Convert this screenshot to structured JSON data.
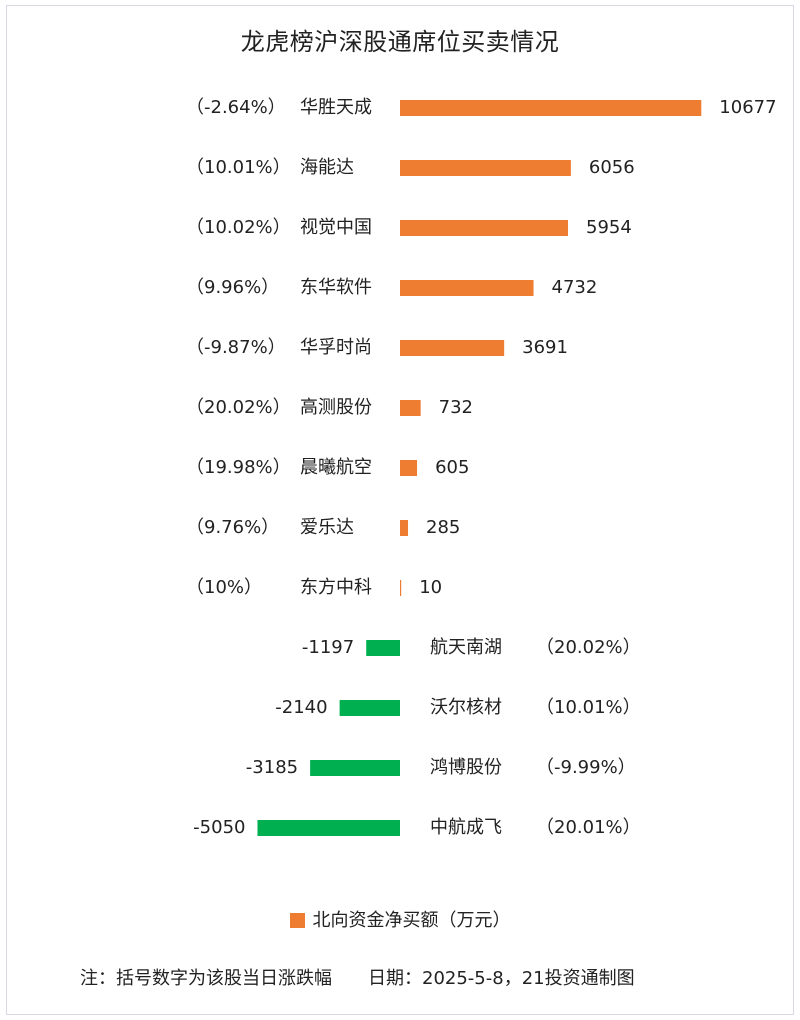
{
  "title": "龙虎榜沪深股通席位买卖情况",
  "legend": {
    "label": "北向资金净买额（万元）",
    "color": "#ee7d31"
  },
  "footer": {
    "note": "注：括号数字为该股当日涨跌幅",
    "source": "日期：2025-5-8，21投资通制图"
  },
  "colors": {
    "positive": "#ee7d31",
    "negative": "#00b050",
    "text": "#222222"
  },
  "chart_data": {
    "type": "bar",
    "orientation": "horizontal",
    "series": [
      {
        "name": "北向资金净买额（万元）",
        "values": [
          10677,
          6056,
          5954,
          4732,
          3691,
          732,
          605,
          285,
          10,
          -1197,
          -2140,
          -3185,
          -5050
        ]
      }
    ],
    "categories": [
      "华胜天成",
      "海能达",
      "视觉中国",
      "东华软件",
      "华孚时尚",
      "高测股份",
      "晨曦航空",
      "爱乐达",
      "东方中科",
      "航天南湖",
      "沃尔核材",
      "鸿博股份",
      "中航成飞"
    ],
    "annotations": [
      "（-2.64%）",
      "（10.01%）",
      "（10.02%）",
      "（9.96%）",
      "（-9.87%）",
      "（20.02%）",
      "（19.98%）",
      "（9.76%）",
      "（10%）",
      "（20.02%）",
      "（10.01%）",
      "（-9.99%）",
      "（20.01%）"
    ],
    "value_labels": [
      "10677",
      "6056",
      "5954",
      "4732",
      "3691",
      "732",
      "605",
      "285",
      "10",
      "-1197",
      "-2140",
      "-3185",
      "-5050"
    ]
  }
}
